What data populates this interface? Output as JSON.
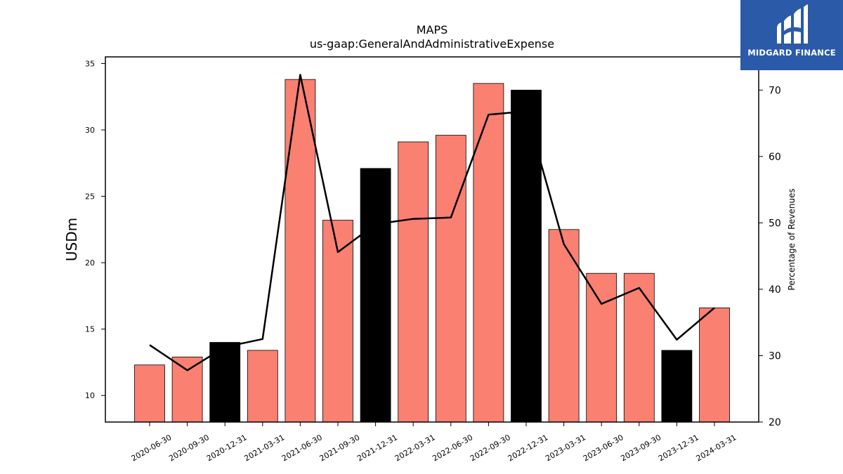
{
  "logo": {
    "text": "MIDGARD FINANCE"
  },
  "chart_data": {
    "type": "bar",
    "title": "MAPS",
    "subtitle": "us-gaap:GeneralAndAdministrativeExpense",
    "ylabel": "USDm",
    "y2label": "Percentage of Revenues",
    "ylim": [
      8,
      35.5
    ],
    "y2lim": [
      20,
      75
    ],
    "yticks": [
      10,
      15,
      20,
      25,
      30,
      35
    ],
    "y2ticks": [
      20,
      30,
      40,
      50,
      60,
      70
    ],
    "categories": [
      "2020-06-30",
      "2020-09-30",
      "2020-12-31",
      "2021-03-31",
      "2021-06-30",
      "2021-09-30",
      "2021-12-31",
      "2022-03-31",
      "2022-06-30",
      "2022-09-30",
      "2022-12-31",
      "2023-03-31",
      "2023-06-30",
      "2023-09-30",
      "2023-12-31",
      "2024-03-31"
    ],
    "series": [
      {
        "type": "bar",
        "axis": "left",
        "values": [
          12.3,
          12.9,
          14.0,
          13.4,
          33.8,
          23.2,
          27.1,
          29.1,
          29.6,
          33.5,
          33.0,
          22.5,
          19.2,
          19.2,
          13.4,
          16.6
        ],
        "colors": [
          "#fa8072",
          "#fa8072",
          "#000000",
          "#fa8072",
          "#fa8072",
          "#fa8072",
          "#000000",
          "#fa8072",
          "#fa8072",
          "#fa8072",
          "#000000",
          "#fa8072",
          "#fa8072",
          "#fa8072",
          "#000000",
          "#fa8072"
        ]
      },
      {
        "type": "line",
        "axis": "right",
        "color": "#000000",
        "values": [
          31.6,
          27.8,
          31.3,
          32.5,
          72.3,
          45.6,
          49.8,
          50.6,
          50.8,
          66.3,
          66.8,
          46.8,
          37.8,
          40.2,
          32.4,
          37.2
        ]
      }
    ],
    "grid": false,
    "legend": "none"
  }
}
